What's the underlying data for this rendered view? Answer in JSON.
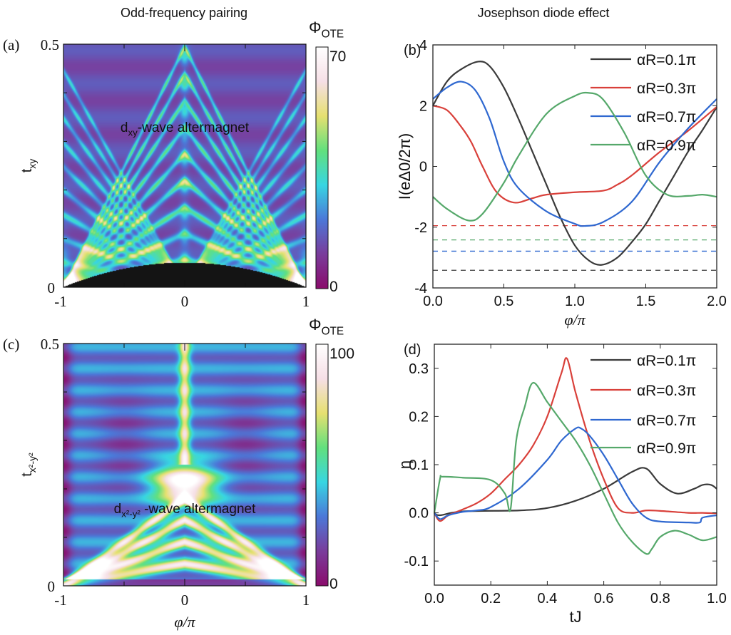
{
  "titles": {
    "left": "Odd-frequency pairing",
    "right": "Josephson diode effect"
  },
  "colors": {
    "black": "#3a3a3a",
    "red": "#d9403a",
    "blue": "#2f68d0",
    "green": "#55a86a"
  },
  "chart_data": [
    {
      "panel": "(a)",
      "type": "heatmap",
      "xlabel": "",
      "ylabel": {
        "main": "t",
        "sub": "xy"
      },
      "xlim": [
        -1,
        1
      ],
      "ylim": [
        0,
        0.5
      ],
      "xticks": [
        "-1",
        "0",
        "1"
      ],
      "yticks": [
        "0",
        "0.5"
      ],
      "colorbar": {
        "label": {
          "main": "Φ",
          "sub": "OTE"
        },
        "range": [
          0,
          70
        ],
        "ticks": [
          "0",
          "70"
        ],
        "colormap": [
          "#8a0c6c",
          "#7a3d9c",
          "#4c78d8",
          "#38d6e2",
          "#62e07e",
          "#e6e070",
          "#f6dfe6",
          "#ffffff"
        ]
      },
      "annotation": {
        "main": "d",
        "sub": "xy",
        "rest": "-wave altermagnet"
      }
    },
    {
      "panel": "(b)",
      "type": "line",
      "xlabel": "φ/π",
      "ylabel": "I(eΔ0/2π)",
      "xlim": [
        0,
        2
      ],
      "ylim": [
        -4,
        4
      ],
      "xticks": [
        "0.0",
        "0.5",
        "1.0",
        "1.5",
        "2.0"
      ],
      "yticks": [
        "4",
        "2",
        "0",
        "-2",
        "-4"
      ],
      "legend_position": "top-right",
      "series": [
        {
          "name": "αR=0.1π",
          "color": "#3a3a3a",
          "x": [
            0,
            0.1,
            0.2,
            0.32,
            0.4,
            0.5,
            0.6,
            0.7,
            0.8,
            0.9,
            1.0,
            1.1,
            1.19,
            1.3,
            1.4,
            1.5,
            1.6,
            1.7,
            1.8,
            1.9,
            2.0
          ],
          "y": [
            2.0,
            2.8,
            3.2,
            3.45,
            3.3,
            2.6,
            1.6,
            0.5,
            -0.6,
            -1.7,
            -2.6,
            -3.1,
            -3.24,
            -3.0,
            -2.5,
            -1.9,
            -1.1,
            -0.3,
            0.5,
            1.2,
            1.95
          ]
        },
        {
          "name": "αR=0.3π",
          "color": "#d9403a",
          "x": [
            0,
            0.1,
            0.2,
            0.27,
            0.35,
            0.45,
            0.57,
            0.7,
            0.8,
            1.0,
            1.2,
            1.3,
            1.4,
            1.6,
            1.8,
            2.0
          ],
          "y": [
            2.0,
            1.85,
            1.3,
            0.8,
            0.0,
            -0.85,
            -1.19,
            -1.05,
            -0.93,
            -0.85,
            -0.8,
            -0.6,
            -0.3,
            0.48,
            1.18,
            1.96
          ]
        },
        {
          "name": "αR=0.7π",
          "color": "#2f68d0",
          "x": [
            0,
            0.1,
            0.2,
            0.3,
            0.4,
            0.5,
            0.6,
            0.8,
            1.0,
            1.07,
            1.2,
            1.4,
            1.6,
            1.8,
            2.0
          ],
          "y": [
            2.22,
            2.6,
            2.79,
            2.5,
            1.57,
            0.16,
            -0.7,
            -1.48,
            -1.89,
            -1.96,
            -1.83,
            -1.17,
            0.16,
            1.26,
            2.22
          ]
        },
        {
          "name": "αR=0.9π",
          "color": "#55a86a",
          "x": [
            0,
            0.1,
            0.25,
            0.35,
            0.5,
            0.6,
            0.8,
            1.0,
            1.1,
            1.2,
            1.35,
            1.5,
            1.65,
            1.8,
            1.9,
            2.0
          ],
          "y": [
            -1.0,
            -1.4,
            -1.78,
            -1.56,
            -0.54,
            0.32,
            1.73,
            2.32,
            2.42,
            2.2,
            1.1,
            -0.3,
            -0.93,
            -0.97,
            -0.93,
            -1.0
          ]
        }
      ],
      "dashed_lines": [
        {
          "color": "#d9403a",
          "y": -1.95
        },
        {
          "color": "#55a86a",
          "y": -2.42
        },
        {
          "color": "#2f68d0",
          "y": -2.79
        },
        {
          "color": "#3a3a3a",
          "y": -3.42
        }
      ]
    },
    {
      "panel": "(c)",
      "type": "heatmap",
      "xlabel": "φ/π",
      "ylabel": {
        "main": "t",
        "sub": "x²-y²"
      },
      "xlim": [
        -1,
        1
      ],
      "ylim": [
        0,
        0.5
      ],
      "xticks": [
        "-1",
        "0",
        "1"
      ],
      "yticks": [
        "0",
        "0.5"
      ],
      "colorbar": {
        "label": {
          "main": "Φ",
          "sub": "OTE"
        },
        "range": [
          0,
          100
        ],
        "ticks": [
          "0",
          "100"
        ],
        "colormap": [
          "#8a0c6c",
          "#7a3d9c",
          "#4c78d8",
          "#38d6e2",
          "#62e07e",
          "#e6e070",
          "#f6dfe6",
          "#ffffff"
        ]
      },
      "annotation": {
        "main": "d",
        "sub": "x²-y²",
        "rest": " -wave altermagnet"
      }
    },
    {
      "panel": "(d)",
      "type": "line",
      "xlabel": "tJ",
      "ylabel": "η",
      "xlim": [
        0,
        1
      ],
      "ylim": [
        -0.15,
        0.35
      ],
      "xticks": [
        "0.0",
        "0.2",
        "0.4",
        "0.6",
        "0.8",
        "1.0"
      ],
      "yticks": [
        "0.3",
        "0.2",
        "0.1",
        "0.0",
        "-0.1"
      ],
      "legend_position": "top-right",
      "series": [
        {
          "name": "αR=0.1π",
          "color": "#3a3a3a",
          "x": [
            0,
            0.02,
            0.1,
            0.3,
            0.4,
            0.5,
            0.6,
            0.7,
            0.75,
            0.8,
            0.86,
            0.92,
            0.95,
            0.98,
            1.0
          ],
          "y": [
            0,
            -0.005,
            0.003,
            0.005,
            0.01,
            0.025,
            0.05,
            0.085,
            0.092,
            0.06,
            0.04,
            0.05,
            0.058,
            0.058,
            0.05
          ]
        },
        {
          "name": "αR=0.3π",
          "color": "#d9403a",
          "x": [
            0,
            0.02,
            0.05,
            0.1,
            0.15,
            0.2,
            0.25,
            0.3,
            0.35,
            0.4,
            0.45,
            0.47,
            0.5,
            0.55,
            0.6,
            0.65,
            0.7,
            0.75,
            0.8,
            0.9,
            0.95,
            1.0
          ],
          "y": [
            0,
            -0.017,
            -0.005,
            0.007,
            0.02,
            0.04,
            0.07,
            0.1,
            0.14,
            0.2,
            0.29,
            0.32,
            0.25,
            0.15,
            0.07,
            0.01,
            0.0,
            0.005,
            0.004,
            0.0,
            0.0,
            -0.001
          ]
        },
        {
          "name": "αR=0.7π",
          "color": "#2f68d0",
          "x": [
            0,
            0.02,
            0.05,
            0.1,
            0.15,
            0.2,
            0.3,
            0.4,
            0.45,
            0.5,
            0.52,
            0.55,
            0.6,
            0.65,
            0.7,
            0.75,
            0.8,
            0.9,
            0.94,
            0.95,
            1.0
          ],
          "y": [
            0,
            -0.013,
            -0.005,
            0.002,
            0.005,
            0.012,
            0.05,
            0.11,
            0.15,
            0.175,
            0.175,
            0.16,
            0.12,
            0.07,
            0.02,
            -0.01,
            -0.018,
            -0.02,
            -0.02,
            -0.01,
            -0.005
          ]
        },
        {
          "name": "αR=0.9π",
          "color": "#55a86a",
          "x": [
            0,
            0.02,
            0.03,
            0.1,
            0.2,
            0.25,
            0.27,
            0.29,
            0.32,
            0.35,
            0.4,
            0.45,
            0.5,
            0.55,
            0.6,
            0.65,
            0.7,
            0.75,
            0.77,
            0.8,
            0.85,
            0.9,
            0.95,
            1.0
          ],
          "y": [
            0,
            0.07,
            0.075,
            0.073,
            0.068,
            0.04,
            0.008,
            0.15,
            0.22,
            0.27,
            0.23,
            0.19,
            0.15,
            0.1,
            0.04,
            -0.02,
            -0.06,
            -0.085,
            -0.075,
            -0.05,
            -0.037,
            -0.045,
            -0.057,
            -0.05
          ]
        }
      ]
    }
  ]
}
